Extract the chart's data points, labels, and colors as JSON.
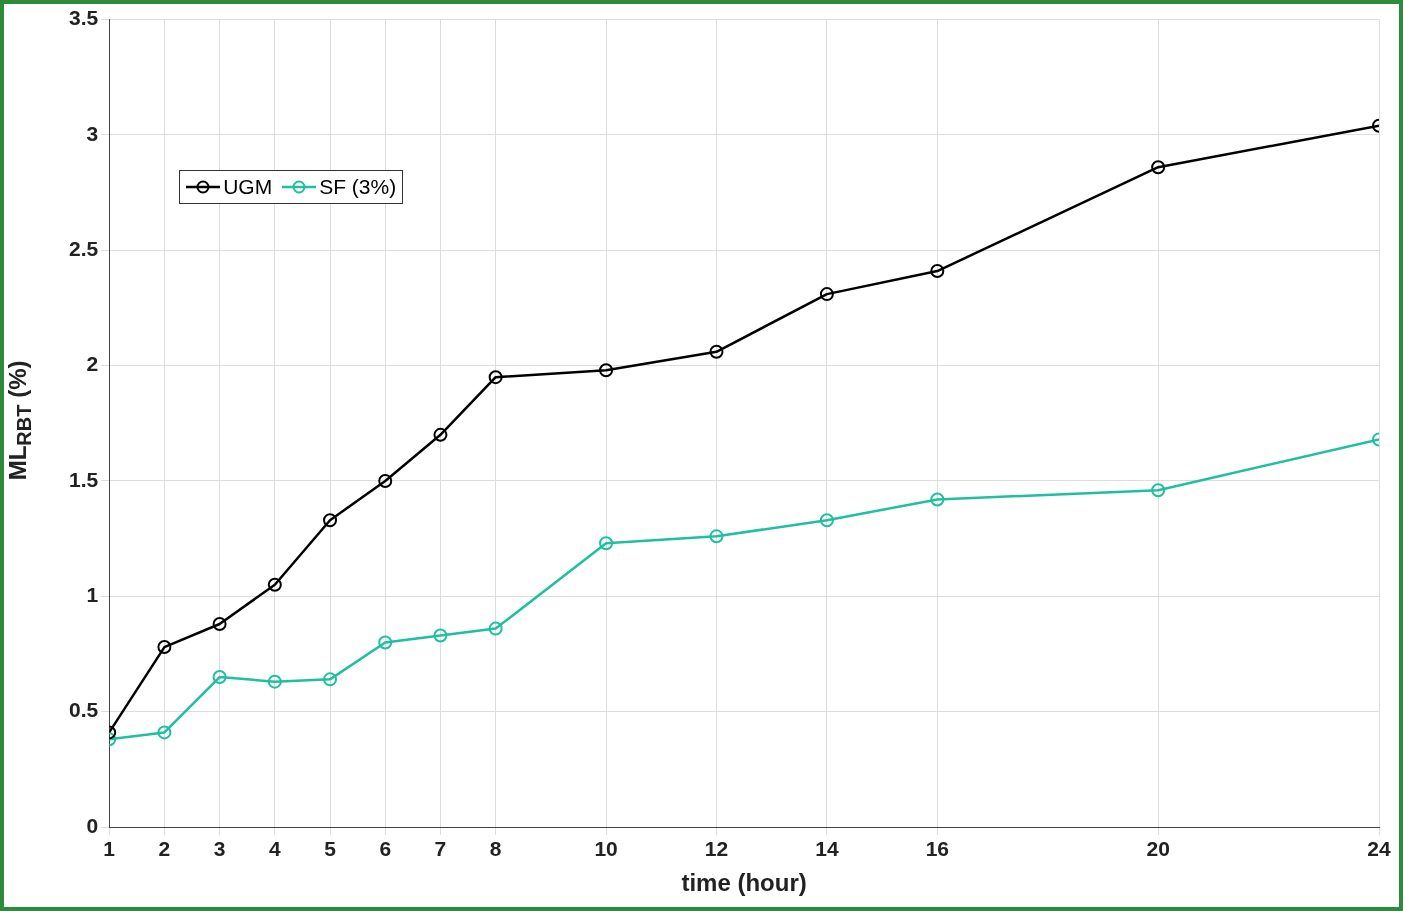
{
  "chart_data": {
    "type": "line",
    "xlabel": "time (hour)",
    "ylabel": "ML$_{RBT}$ (%)",
    "x": [
      1,
      2,
      3,
      4,
      5,
      6,
      7,
      8,
      10,
      12,
      14,
      16,
      20,
      24
    ],
    "series": [
      {
        "name": "UGM",
        "color": "#000000",
        "values": [
          0.41,
          0.78,
          0.88,
          1.05,
          1.33,
          1.5,
          1.7,
          1.95,
          1.98,
          2.06,
          2.31,
          2.41,
          2.86,
          3.04
        ]
      },
      {
        "name": "SF (3%)",
        "color": "#1fbf9f",
        "values": [
          0.38,
          0.41,
          0.65,
          0.63,
          0.64,
          0.8,
          0.83,
          0.86,
          1.23,
          1.26,
          1.33,
          1.42,
          1.46,
          1.68
        ]
      }
    ],
    "xlim": [
      1,
      24
    ],
    "xticks": [
      1,
      2,
      3,
      4,
      5,
      6,
      7,
      8,
      10,
      12,
      14,
      16,
      20,
      24
    ],
    "ylim": [
      0,
      3.5
    ],
    "yticks": [
      0,
      0.5,
      1,
      1.5,
      2,
      2.5,
      3,
      3.5
    ],
    "grid": true,
    "legend": "top left",
    "marker": "circle",
    "line_style": "solid"
  }
}
